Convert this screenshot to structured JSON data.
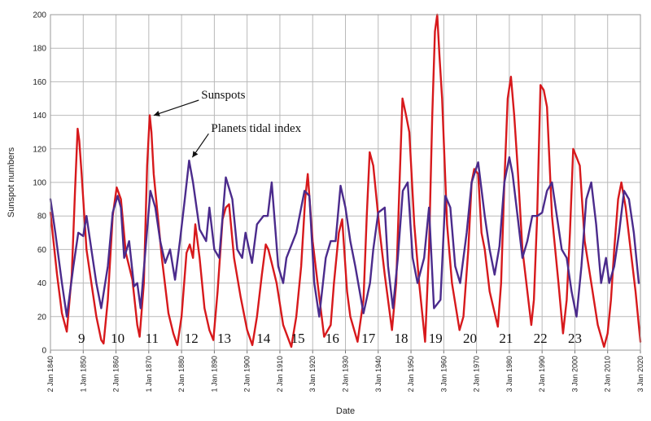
{
  "chart_data": {
    "type": "line",
    "title": "",
    "xlabel": "Date",
    "ylabel": "Sunspot numbers",
    "xlim": [
      1840,
      2020
    ],
    "ylim": [
      0,
      200
    ],
    "grid": true,
    "y_ticks": [
      "0",
      "20",
      "40",
      "60",
      "80",
      "100",
      "120",
      "140",
      "160",
      "180",
      "200"
    ],
    "x_ticks": [
      {
        "year": 1840,
        "label": "2 Jan 1840"
      },
      {
        "year": 1850,
        "label": "1 Jan 1850"
      },
      {
        "year": 1860,
        "label": "2 Jan 1860"
      },
      {
        "year": 1870,
        "label": "1 Jan 1870"
      },
      {
        "year": 1880,
        "label": "2 Jan 1880"
      },
      {
        "year": 1890,
        "label": "1 Jan 1890"
      },
      {
        "year": 1900,
        "label": "2 Jan 1900"
      },
      {
        "year": 1910,
        "label": "2 Jan 1910"
      },
      {
        "year": 1920,
        "label": "3 Jan 1920"
      },
      {
        "year": 1930,
        "label": "2 Jan 1930"
      },
      {
        "year": 1940,
        "label": "3 Jan 1940"
      },
      {
        "year": 1950,
        "label": "2 Jan 1950"
      },
      {
        "year": 1960,
        "label": "3 Jan 1960"
      },
      {
        "year": 1970,
        "label": "2 Jan 1970"
      },
      {
        "year": 1980,
        "label": "3 Jan 1980"
      },
      {
        "year": 1990,
        "label": "2 Jan 1990"
      },
      {
        "year": 2000,
        "label": "3 Jan 2000"
      },
      {
        "year": 2010,
        "label": "2 Jan 2010"
      },
      {
        "year": 2020,
        "label": "3 Jan 2020"
      }
    ],
    "series": [
      {
        "name": "Sunspots",
        "color": "#d7191c",
        "x": [
          1840,
          1842,
          1843.5,
          1845,
          1846.5,
          1847.5,
          1848.3,
          1848.8,
          1849.5,
          1851,
          1852.5,
          1854,
          1855.5,
          1856.2,
          1857.5,
          1859,
          1860.2,
          1861.5,
          1863,
          1865,
          1866.5,
          1867.2,
          1868.5,
          1869.5,
          1870.3,
          1870.8,
          1871.5,
          1872.5,
          1874,
          1876,
          1877.5,
          1878.7,
          1880,
          1881.5,
          1882.5,
          1883.5,
          1884.2,
          1885.5,
          1887,
          1888.5,
          1889.7,
          1891,
          1892.5,
          1893.5,
          1894.5,
          1896,
          1898,
          1900,
          1901.6,
          1903,
          1904.5,
          1905.7,
          1906.5,
          1907.5,
          1909,
          1911,
          1913.5,
          1915,
          1916.5,
          1917.7,
          1918.5,
          1920,
          1921.5,
          1923.5,
          1925.5,
          1926.5,
          1928,
          1929,
          1930.5,
          1931.5,
          1933.7,
          1935.5,
          1936.5,
          1937.4,
          1938.5,
          1940.5,
          1942,
          1944.2,
          1945.5,
          1946.5,
          1947.4,
          1948.5,
          1949.5,
          1951,
          1952.5,
          1954.3,
          1955.5,
          1956.5,
          1957.3,
          1958,
          1958.7,
          1959.5,
          1961,
          1962.5,
          1964.8,
          1966,
          1967.5,
          1968.5,
          1969.3,
          1970.5,
          1971.5,
          1972.5,
          1974,
          1976.5,
          1977.5,
          1978.5,
          1979.5,
          1980.5,
          1981.5,
          1982.5,
          1984,
          1986.7,
          1987.5,
          1988.5,
          1989.5,
          1990.5,
          1991.5,
          1993,
          1995,
          1996.4,
          1997.5,
          1998.5,
          1999.5,
          2000.5,
          2001.5,
          2003,
          2005,
          2007,
          2008.9,
          2010,
          2011,
          2012,
          2013.2,
          2014.2,
          2015.5,
          2017,
          2018.5,
          2019.5,
          2020
        ],
        "values": [
          82,
          45,
          22,
          11,
          45,
          95,
          132,
          125,
          105,
          60,
          40,
          20,
          6,
          4,
          30,
          80,
          97,
          90,
          58,
          42,
          15,
          8,
          40,
          110,
          140,
          130,
          105,
          85,
          55,
          22,
          10,
          3,
          20,
          58,
          63,
          55,
          75,
          55,
          25,
          12,
          6,
          35,
          78,
          85,
          87,
          55,
          32,
          12,
          3,
          20,
          45,
          63,
          60,
          52,
          40,
          15,
          2,
          20,
          50,
          90,
          105,
          65,
          40,
          8,
          15,
          40,
          70,
          78,
          35,
          20,
          5,
          30,
          80,
          118,
          110,
          70,
          45,
          12,
          40,
          100,
          150,
          140,
          130,
          75,
          40,
          5,
          60,
          140,
          190,
          200,
          175,
          150,
          75,
          40,
          12,
          20,
          60,
          100,
          108,
          105,
          70,
          60,
          35,
          14,
          40,
          100,
          150,
          163,
          140,
          110,
          60,
          15,
          30,
          80,
          158,
          155,
          145,
          80,
          40,
          10,
          30,
          70,
          120,
          115,
          110,
          65,
          40,
          15,
          2,
          10,
          30,
          60,
          90,
          100,
          85,
          60,
          35,
          15,
          5
        ]
      },
      {
        "name": "Planets tidal index",
        "color": "#4b2b8c",
        "x": [
          1840,
          1841.5,
          1843.5,
          1845,
          1847,
          1848.5,
          1850,
          1851,
          1852.5,
          1854,
          1855.5,
          1857.5,
          1859,
          1860.5,
          1861.5,
          1862.5,
          1864,
          1865.5,
          1866.5,
          1867.5,
          1869,
          1870.5,
          1872,
          1873.5,
          1875,
          1876.5,
          1878,
          1879.5,
          1881,
          1882.3,
          1883.5,
          1885.5,
          1887.5,
          1888.5,
          1890,
          1891.5,
          1893.5,
          1895.5,
          1897,
          1898.5,
          1899.5,
          1901.5,
          1903,
          1905,
          1906.3,
          1907.5,
          1909.5,
          1911,
          1912,
          1913,
          1915,
          1917.5,
          1919,
          1920.5,
          1922,
          1924,
          1925.5,
          1927,
          1928.5,
          1930,
          1931.5,
          1933,
          1935.5,
          1937.5,
          1938.5,
          1940,
          1942,
          1943,
          1944.5,
          1946,
          1947.5,
          1949,
          1950.5,
          1952,
          1954,
          1955.5,
          1957,
          1959,
          1960.5,
          1962,
          1963.5,
          1965,
          1967,
          1968.5,
          1970.5,
          1972.5,
          1974,
          1975.5,
          1977,
          1978.5,
          1980,
          1981,
          1982.5,
          1984,
          1985.5,
          1987,
          1988.5,
          1990,
          1991.5,
          1993,
          1994.5,
          1996,
          1997.5,
          1999,
          2000.5,
          2002,
          2003.5,
          2005,
          2006.5,
          2008,
          2009.5,
          2010.5,
          2012,
          2013.5,
          2015,
          2016.5,
          2018,
          2019.5
        ],
        "values": [
          90,
          70,
          40,
          20,
          50,
          70,
          68,
          80,
          60,
          40,
          25,
          50,
          82,
          92,
          85,
          55,
          65,
          38,
          40,
          25,
          60,
          95,
          85,
          65,
          52,
          60,
          42,
          65,
          90,
          113,
          100,
          72,
          65,
          85,
          60,
          55,
          103,
          90,
          60,
          55,
          70,
          52,
          75,
          80,
          80,
          100,
          50,
          40,
          55,
          60,
          70,
          95,
          92,
          40,
          20,
          55,
          65,
          65,
          98,
          85,
          65,
          50,
          22,
          40,
          60,
          82,
          85,
          50,
          25,
          55,
          95,
          100,
          55,
          40,
          55,
          85,
          25,
          30,
          92,
          85,
          50,
          40,
          70,
          100,
          112,
          80,
          60,
          45,
          62,
          100,
          115,
          105,
          80,
          55,
          65,
          80,
          80,
          82,
          95,
          100,
          80,
          60,
          55,
          35,
          20,
          50,
          90,
          100,
          75,
          40,
          55,
          40,
          50,
          70,
          95,
          90,
          70,
          40
        ]
      }
    ],
    "cycle_labels": [
      {
        "label": "9",
        "x": 1849.5
      },
      {
        "label": "10",
        "x": 1860.5
      },
      {
        "label": "11",
        "x": 1871
      },
      {
        "label": "12",
        "x": 1883
      },
      {
        "label": "13",
        "x": 1893
      },
      {
        "label": "14",
        "x": 1905
      },
      {
        "label": "15",
        "x": 1915.5
      },
      {
        "label": "16",
        "x": 1926
      },
      {
        "label": "17",
        "x": 1937
      },
      {
        "label": "18",
        "x": 1947
      },
      {
        "label": "19",
        "x": 1957.5
      },
      {
        "label": "20",
        "x": 1968
      },
      {
        "label": "21",
        "x": 1979
      },
      {
        "label": "22",
        "x": 1989.5
      },
      {
        "label": "23",
        "x": 2000
      }
    ],
    "annotations": [
      {
        "text": "Sunspots",
        "x": 1886,
        "y": 150,
        "target_x": 1870.5,
        "target_y": 138
      },
      {
        "text": "Planets tidal index",
        "x": 1889,
        "y": 130,
        "target_x": 1882.3,
        "target_y": 113
      }
    ]
  }
}
